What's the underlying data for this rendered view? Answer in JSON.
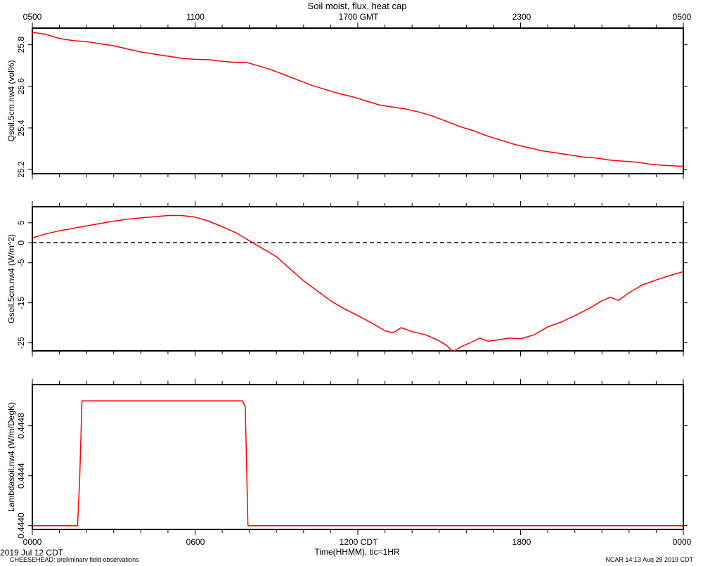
{
  "title": "Soil moist, flux, heat cap",
  "top_axis": {
    "tick_labels": [
      "0500",
      "1100",
      "1700 GMT",
      "2300",
      "0500"
    ]
  },
  "bottom_axis": {
    "tick_labels": [
      "0000",
      "0600",
      "1200 CDT",
      "1800",
      "0000"
    ],
    "label": "Time(HHMM), tic=1HR",
    "date_label": "2019 Jul 12 CDT"
  },
  "footer": {
    "left": "CHEESEHEAD: preliminary field observations",
    "right": "NCAR 14:13 Aug 29 2019 CDT"
  },
  "colors": {
    "series": "#ff0000",
    "axis": "#000000"
  },
  "chart_data": [
    {
      "type": "line",
      "ylabel": "Qsoil.5cm.nw4 (vol%)",
      "ylim": [
        25.18,
        25.88
      ],
      "yticks": [
        25.2,
        25.4,
        25.6,
        25.8
      ],
      "ytick_labels": [
        "25.2",
        "25.4",
        "25.6",
        "25.8"
      ],
      "xlim": [
        0,
        24
      ],
      "x": [
        0,
        0.5,
        1,
        1.5,
        2,
        2.5,
        3,
        3.5,
        4,
        4.5,
        5,
        5.5,
        6,
        6.5,
        7,
        7.5,
        7.9,
        8.3,
        8.8,
        9.3,
        9.8,
        10.3,
        10.8,
        11.3,
        11.8,
        12.3,
        12.8,
        13.3,
        13.8,
        14.3,
        14.8,
        15.3,
        15.8,
        16.3,
        16.8,
        17.3,
        17.8,
        18.3,
        18.8,
        19.3,
        19.8,
        20.3,
        20.8,
        21.3,
        21.8,
        22.3,
        22.8,
        23.3,
        24
      ],
      "series": [
        {
          "values": [
            25.86,
            25.85,
            25.83,
            25.82,
            25.815,
            25.805,
            25.795,
            25.78,
            25.765,
            25.755,
            25.745,
            25.735,
            25.73,
            25.728,
            25.72,
            25.715,
            25.715,
            25.7,
            25.68,
            25.655,
            25.63,
            25.605,
            25.585,
            25.565,
            25.55,
            25.53,
            25.51,
            25.5,
            25.49,
            25.475,
            25.455,
            25.43,
            25.405,
            25.385,
            25.36,
            25.34,
            25.32,
            25.305,
            25.29,
            25.28,
            25.27,
            25.26,
            25.255,
            25.245,
            25.24,
            25.235,
            25.225,
            25.22,
            25.215
          ]
        }
      ]
    },
    {
      "type": "line",
      "ylabel": "Gsoil.5cm.nw4 (W/m^2)",
      "ylim": [
        -27,
        9
      ],
      "yticks": [
        -25,
        -15,
        -5,
        0,
        5
      ],
      "ytick_labels": [
        "-25",
        "-15",
        "-5",
        "0",
        "5"
      ],
      "zero_line": true,
      "xlim": [
        0,
        24
      ],
      "x": [
        0,
        0.5,
        1,
        1.5,
        2,
        2.5,
        3,
        3.5,
        4,
        4.5,
        5,
        5.5,
        6,
        6.5,
        7,
        7.5,
        8,
        8.5,
        9,
        9.5,
        10,
        10.5,
        11,
        11.5,
        12,
        12.5,
        13,
        13.3,
        13.6,
        14,
        14.5,
        15,
        15.3,
        15.5,
        15.8,
        16.2,
        16.5,
        16.8,
        17.2,
        17.6,
        18,
        18.5,
        19,
        19.5,
        20,
        20.5,
        21,
        21.3,
        21.6,
        22,
        22.5,
        23,
        23.5,
        24
      ],
      "series": [
        {
          "values": [
            1.2,
            2.2,
            3.0,
            3.6,
            4.2,
            4.8,
            5.4,
            5.9,
            6.2,
            6.5,
            6.8,
            6.8,
            6.4,
            5.4,
            4.0,
            2.5,
            0.5,
            -1.5,
            -3.5,
            -6.5,
            -9.5,
            -12,
            -14.5,
            -16.5,
            -18.2,
            -20,
            -22,
            -22.5,
            -21.2,
            -22.2,
            -23,
            -24.5,
            -25.8,
            -27.2,
            -26,
            -24.8,
            -23.8,
            -24.6,
            -24.2,
            -23.8,
            -24.0,
            -23.0,
            -21.0,
            -19.8,
            -18.2,
            -16.5,
            -14.5,
            -13.6,
            -14.4,
            -12.5,
            -10.5,
            -9.3,
            -8.2,
            -7.2
          ]
        }
      ]
    },
    {
      "type": "line",
      "ylabel": "Lambdasoil.nw4 (W/m/DegK)",
      "ylim": [
        0.44397,
        0.44513
      ],
      "yticks": [
        0.444,
        0.4444,
        0.4448
      ],
      "ytick_labels": [
        "0.4440",
        "0.4444",
        "0.4448"
      ],
      "xlim": [
        0,
        24
      ],
      "x": [
        0,
        1.67,
        1.75,
        1.83,
        7.75,
        7.85,
        7.95,
        24
      ],
      "series": [
        {
          "values": [
            0.444,
            0.444,
            0.4444,
            0.445,
            0.445,
            0.44495,
            0.444,
            0.444
          ]
        }
      ]
    }
  ]
}
